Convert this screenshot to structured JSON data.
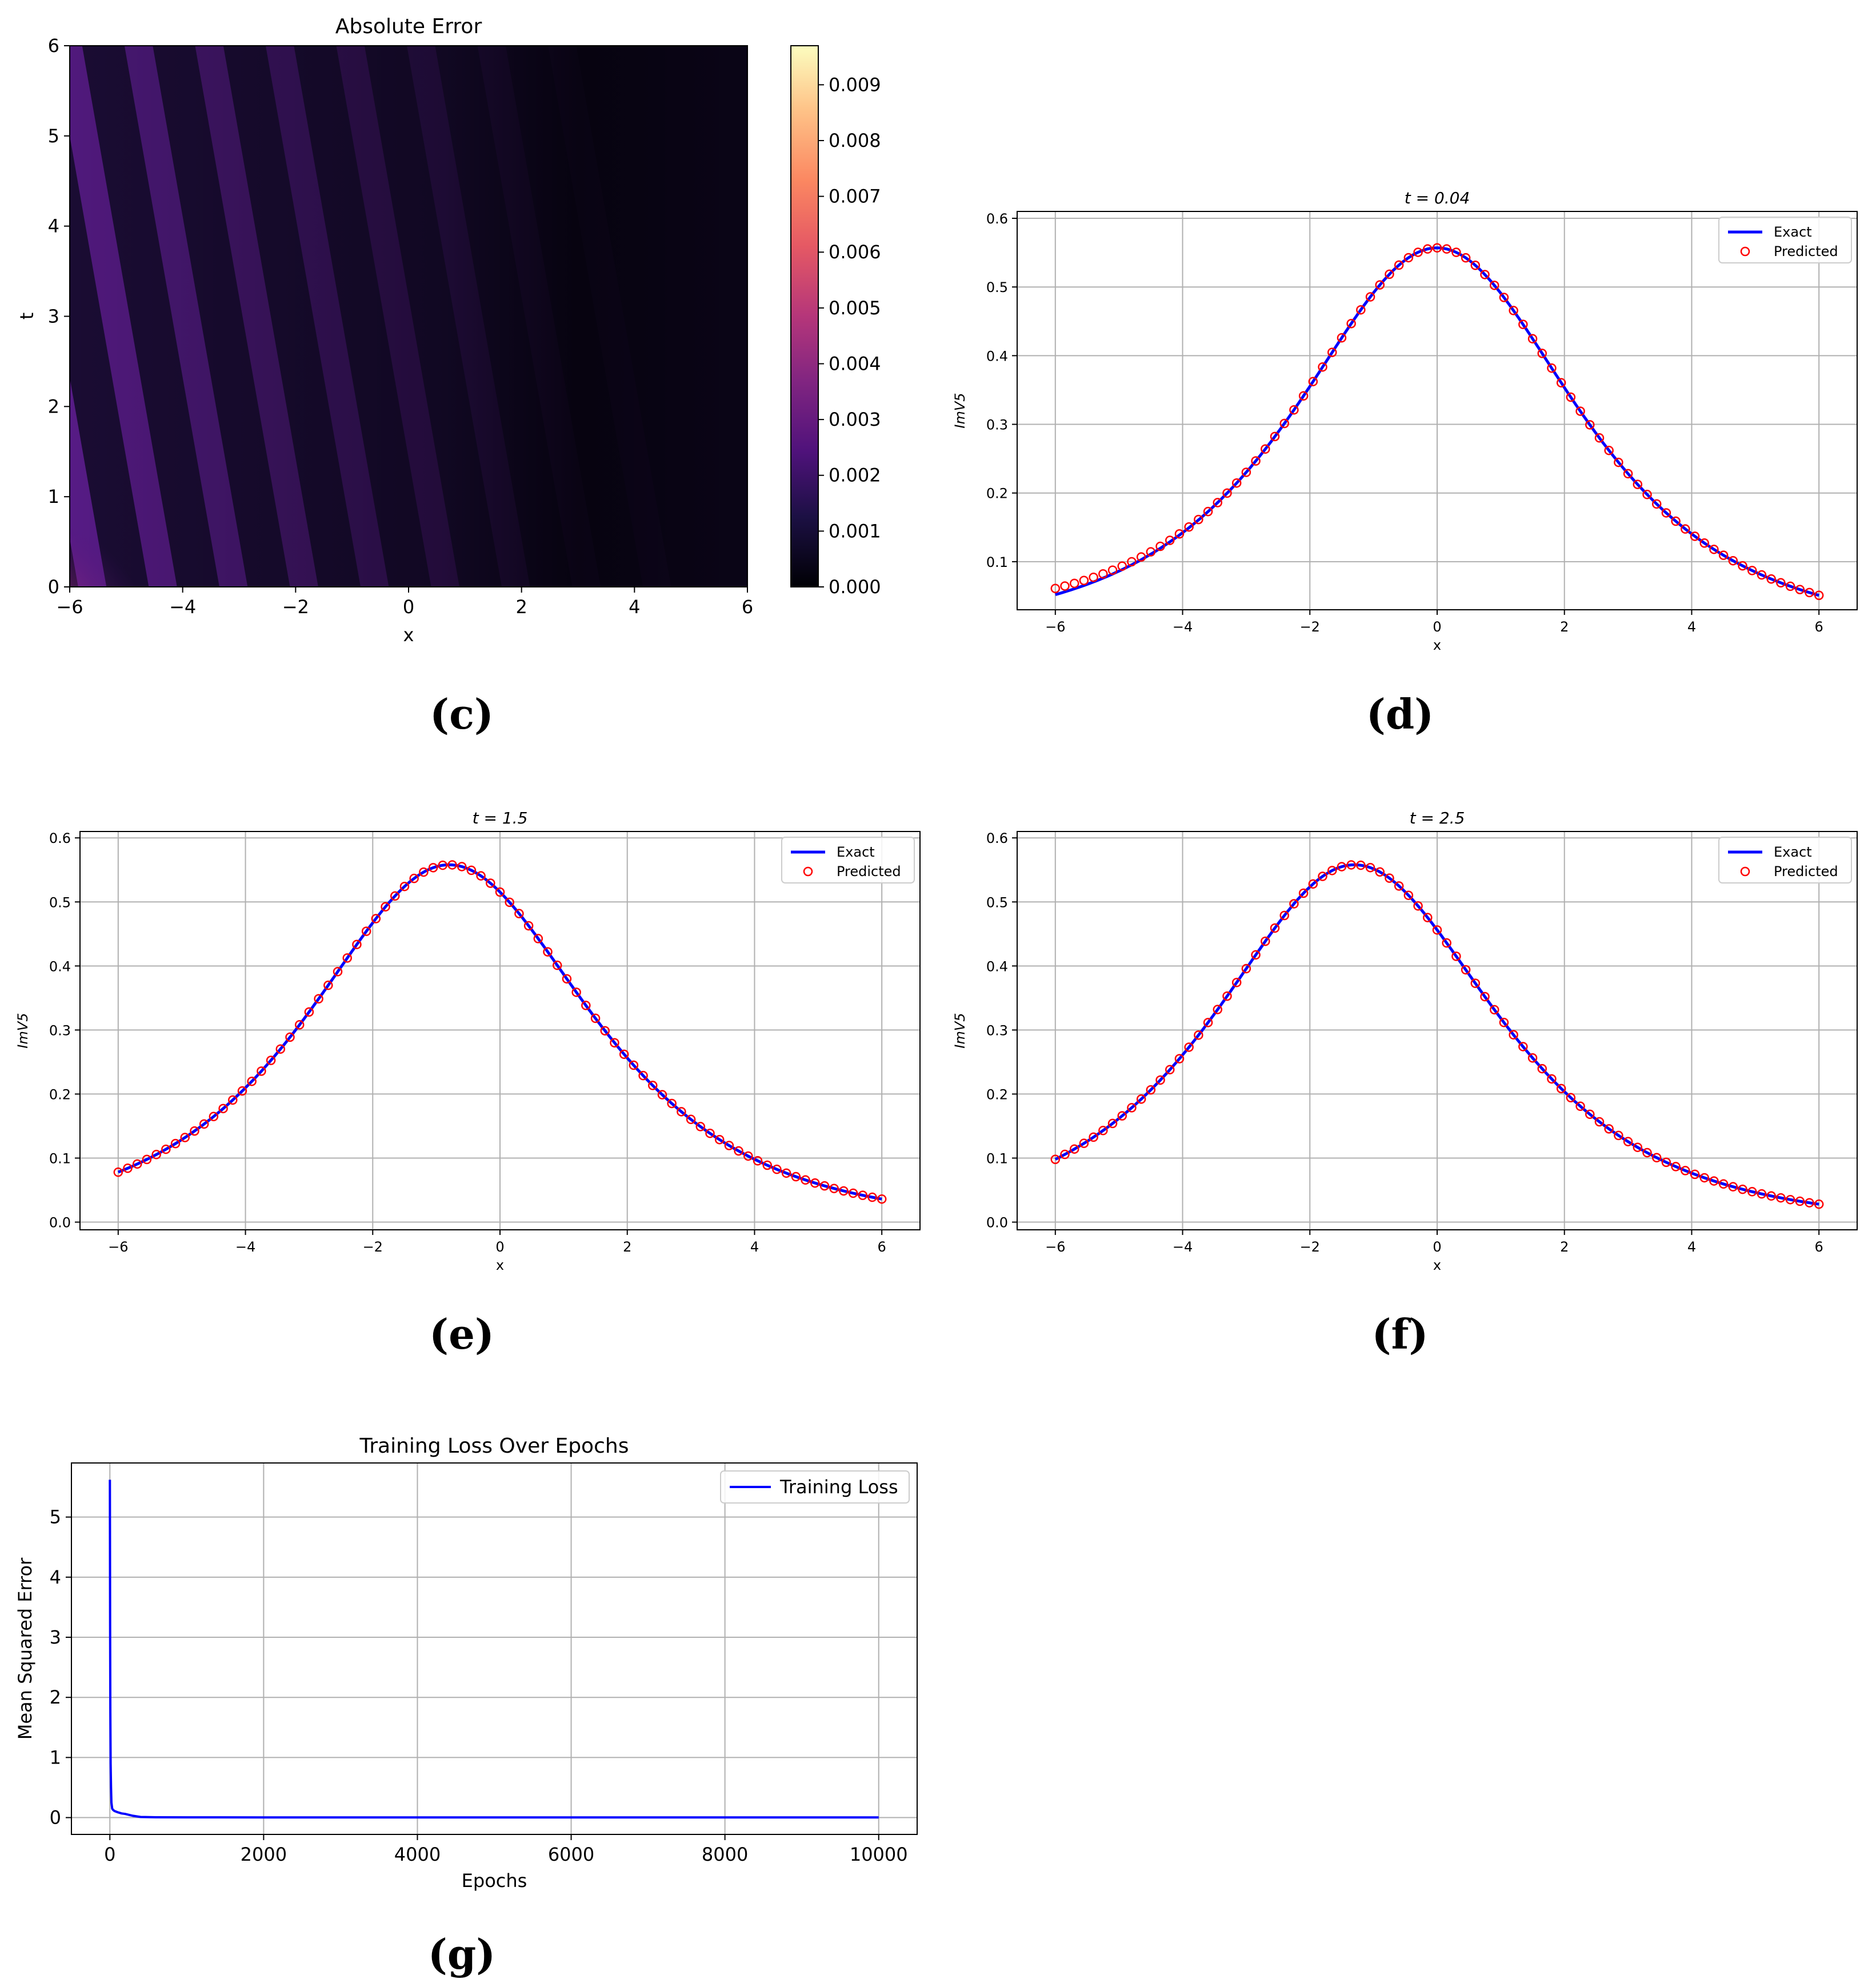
{
  "panels": [
    {
      "id": "c",
      "caption": "(c)"
    },
    {
      "id": "d",
      "caption": "(d)"
    },
    {
      "id": "e",
      "caption": "(e)"
    },
    {
      "id": "f",
      "caption": "(f)"
    },
    {
      "id": "g",
      "caption": "(g)"
    }
  ],
  "chart_data": [
    {
      "panel": "c",
      "type": "heatmap",
      "title": "Absolute Error",
      "xlabel": "x",
      "ylabel": "t",
      "xlim": [
        -6,
        6
      ],
      "ylim": [
        0,
        6
      ],
      "xticks": [
        -6,
        -4,
        -2,
        0,
        2,
        4,
        6
      ],
      "yticks": [
        0,
        1,
        2,
        3,
        4,
        5,
        6
      ],
      "colormap": "magma",
      "colorbar_range": [
        0,
        0.0097
      ],
      "colorbar_ticks": [
        "0.000",
        "0.001",
        "0.002",
        "0.003",
        "0.004",
        "0.005",
        "0.006",
        "0.007",
        "0.008",
        "0.009"
      ],
      "pattern": "diagonal stripes slanting toward negative x as t increases; maximum error ~0.0097 near x=-6, t=0; error decays toward positive x",
      "colors": {
        "low": "#000004",
        "mid": "#721f81",
        "high": "#fcfdbf"
      }
    },
    {
      "panel": "d",
      "type": "line",
      "title": "t = 0.04",
      "xlabel": "x",
      "ylabel": "ImV5",
      "xlim": [
        -6.6,
        6.6
      ],
      "ylim": [
        0.03,
        0.61
      ],
      "xticks": [
        -6,
        -4,
        -2,
        0,
        2,
        4,
        6
      ],
      "yticks": [
        0.1,
        0.2,
        0.3,
        0.4,
        0.5,
        0.6
      ],
      "x_range": [
        -6,
        6
      ],
      "peak": {
        "x": 0.0,
        "y": 0.557
      },
      "series": [
        {
          "name": "Exact",
          "style": "line",
          "color": "#0000ff",
          "endpoints": [
            0.052,
            0.051
          ]
        },
        {
          "name": "Predicted",
          "style": "markers",
          "marker": "open-circle",
          "color": "#ff0000",
          "endpoints": [
            0.061,
            0.051
          ],
          "count": 81
        }
      ],
      "legend": "top-right",
      "grid": true
    },
    {
      "panel": "e",
      "type": "line",
      "title": "t = 1.5",
      "xlabel": "x",
      "ylabel": "ImV5",
      "xlim": [
        -6.6,
        6.6
      ],
      "ylim": [
        -0.012,
        0.61
      ],
      "xticks": [
        -6,
        -4,
        -2,
        0,
        2,
        4,
        6
      ],
      "yticks": [
        0.0,
        0.1,
        0.2,
        0.3,
        0.4,
        0.5,
        0.6
      ],
      "x_range": [
        -6,
        6
      ],
      "peak": {
        "x": -0.8,
        "y": 0.558
      },
      "series": [
        {
          "name": "Exact",
          "style": "line",
          "color": "#0000ff",
          "endpoints": [
            0.078,
            0.036
          ]
        },
        {
          "name": "Predicted",
          "style": "markers",
          "marker": "open-circle",
          "color": "#ff0000",
          "endpoints": [
            0.078,
            0.036
          ],
          "count": 81
        }
      ],
      "legend": "top-right",
      "grid": true
    },
    {
      "panel": "f",
      "type": "line",
      "title": "t = 2.5",
      "xlabel": "x",
      "ylabel": "ImV5",
      "xlim": [
        -6.6,
        6.6
      ],
      "ylim": [
        -0.012,
        0.61
      ],
      "xticks": [
        -6,
        -4,
        -2,
        0,
        2,
        4,
        6
      ],
      "yticks": [
        0.0,
        0.1,
        0.2,
        0.3,
        0.4,
        0.5,
        0.6
      ],
      "x_range": [
        -6,
        6
      ],
      "peak": {
        "x": -1.3,
        "y": 0.558
      },
      "series": [
        {
          "name": "Exact",
          "style": "line",
          "color": "#0000ff",
          "endpoints": [
            0.098,
            0.028
          ]
        },
        {
          "name": "Predicted",
          "style": "markers",
          "marker": "open-circle",
          "color": "#ff0000",
          "endpoints": [
            0.098,
            0.028
          ],
          "count": 81
        }
      ],
      "legend": "top-right",
      "grid": true
    },
    {
      "panel": "g",
      "type": "line",
      "title": "Training Loss Over Epochs",
      "xlabel": "Epochs",
      "ylabel": "Mean Squared Error",
      "xlim": [
        -500,
        10500
      ],
      "ylim": [
        -0.28,
        5.9
      ],
      "xticks": [
        0,
        2000,
        4000,
        6000,
        8000,
        10000
      ],
      "yticks": [
        0,
        1,
        2,
        3,
        4,
        5
      ],
      "series": [
        {
          "name": "Training Loss",
          "color": "#0000ff",
          "x": [
            0,
            3,
            6,
            10,
            15,
            20,
            30,
            40,
            60,
            100,
            150,
            200,
            300,
            400,
            600,
            1000,
            2000,
            3000,
            4000,
            5000,
            6000,
            7000,
            8000,
            9000,
            10000
          ],
          "y": [
            5.62,
            3.2,
            1.75,
            0.9,
            0.5,
            0.25,
            0.15,
            0.13,
            0.11,
            0.09,
            0.07,
            0.06,
            0.03,
            0.01,
            0.005,
            0.004,
            0.003,
            0.003,
            0.003,
            0.002,
            0.002,
            0.002,
            0.002,
            0.002,
            0.002
          ]
        }
      ],
      "legend": "top-right",
      "grid": true
    }
  ]
}
